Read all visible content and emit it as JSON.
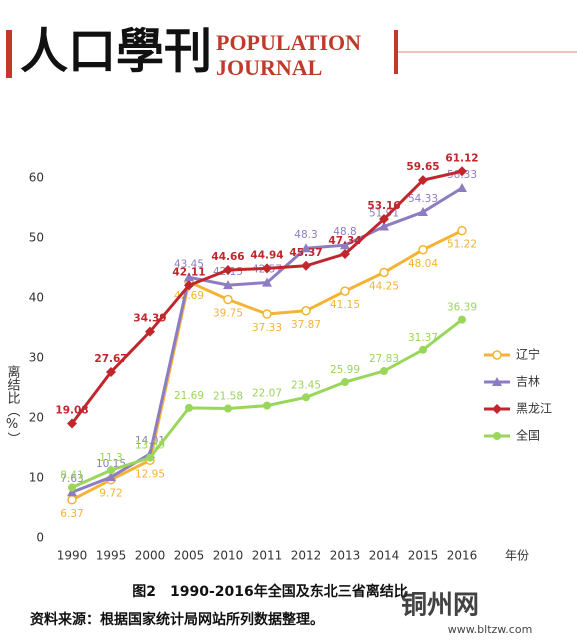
{
  "header": {
    "title_cn": "人口學刊",
    "title_en_1": "POPULATION",
    "title_en_2": "JOURNAL"
  },
  "chart_data": {
    "type": "line",
    "caption": "图2　1990-2016年全国及东北三省离结比",
    "source": "资料来源：根据国家统计局网站所列数据整理。",
    "y_label": "离结比（%）",
    "x_label": "年份",
    "categories": [
      "1990",
      "1995",
      "2000",
      "2005",
      "2010",
      "2011",
      "2012",
      "2013",
      "2014",
      "2015",
      "2016"
    ],
    "ylim": [
      0,
      65
    ],
    "yticks": [
      0,
      10,
      20,
      30,
      40,
      50,
      60
    ],
    "grid": false,
    "legend": "right",
    "series": [
      {
        "name": "辽宁",
        "color": "#f5b335",
        "marker": "open-circle",
        "values": [
          6.37,
          9.72,
          12.95,
          42.69,
          39.75,
          37.33,
          37.87,
          41.15,
          44.25,
          48.04,
          51.22
        ]
      },
      {
        "name": "吉林",
        "color": "#8e7cc3",
        "marker": "triangle",
        "values": [
          7.63,
          10.15,
          14.01,
          43.45,
          42.15,
          42.57,
          48.3,
          48.8,
          51.91,
          54.33,
          58.33
        ]
      },
      {
        "name": "黑龙江",
        "color": "#c0272d",
        "marker": "diamond",
        "values": [
          19.08,
          27.67,
          34.39,
          42.11,
          44.66,
          44.94,
          45.37,
          47.34,
          53.16,
          59.65,
          61.12
        ]
      },
      {
        "name": "全国",
        "color": "#9ad65a",
        "marker": "circle",
        "values": [
          8.41,
          11.3,
          13.39,
          21.69,
          21.58,
          22.07,
          23.45,
          25.99,
          27.83,
          31.37,
          36.39
        ]
      }
    ]
  },
  "watermark": {
    "name": "铜州网",
    "url": "www.bltzw.com"
  }
}
